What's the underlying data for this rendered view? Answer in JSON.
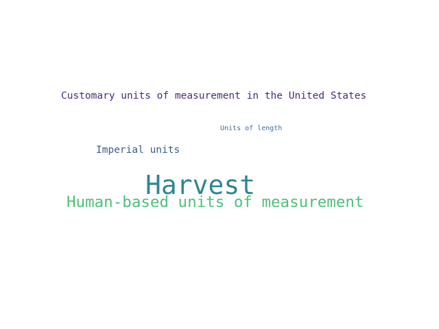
{
  "word_cloud": {
    "words": [
      {
        "text": "Customary units of measurement in the United States",
        "color": "#4a2a78"
      },
      {
        "text": "Units of length",
        "color": "#3f6d9a"
      },
      {
        "text": "Imperial units",
        "color": "#3c5a8c"
      },
      {
        "text": "Harvest",
        "color": "#2e8594"
      },
      {
        "text": "Human-based units of measurement",
        "color": "#4cc17a"
      }
    ]
  }
}
